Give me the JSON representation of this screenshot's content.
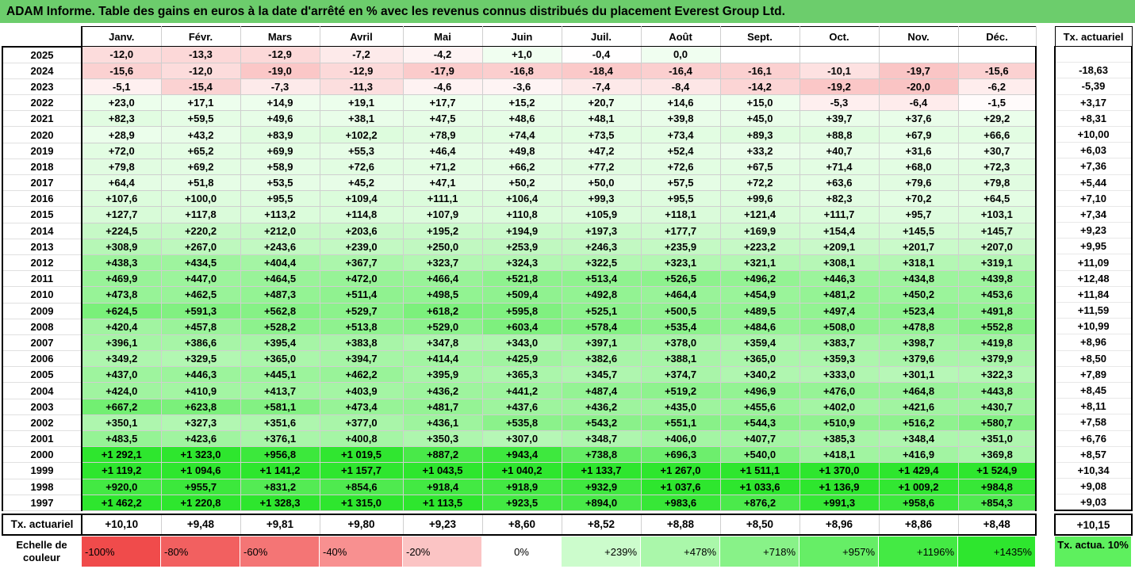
{
  "title": "ADAM Informe. Table des gains en euros à la date d'arrêté en % avec les revenus connus distribués du placement Everest Group Ltd.",
  "months": [
    "Janv.",
    "Févr.",
    "Mars",
    "Avril",
    "Mai",
    "Juin",
    "Juil.",
    "Août",
    "Sept.",
    "Oct.",
    "Nov.",
    "Déc."
  ],
  "tx_header": "Tx. actuariel",
  "rows": [
    {
      "year": "2025",
      "values": [
        "-12,0",
        "-13,3",
        "-12,9",
        "-7,2",
        "-4,2",
        "+1,0",
        "-0,4",
        "0,0",
        "",
        "",
        "",
        ""
      ],
      "tx": ""
    },
    {
      "year": "2024",
      "values": [
        "-15,6",
        "-12,0",
        "-19,0",
        "-12,9",
        "-17,9",
        "-16,8",
        "-18,4",
        "-16,4",
        "-16,1",
        "-10,1",
        "-19,7",
        "-15,6"
      ],
      "tx": "-18,63"
    },
    {
      "year": "2023",
      "values": [
        "-5,1",
        "-15,4",
        "-7,3",
        "-11,3",
        "-4,6",
        "-3,6",
        "-7,4",
        "-8,4",
        "-14,2",
        "-19,2",
        "-20,0",
        "-6,2"
      ],
      "tx": "-5,39"
    },
    {
      "year": "2022",
      "values": [
        "+23,0",
        "+17,1",
        "+14,9",
        "+19,1",
        "+17,7",
        "+15,2",
        "+20,7",
        "+14,6",
        "+15,0",
        "-5,3",
        "-6,4",
        "-1,5"
      ],
      "tx": "+3,17"
    },
    {
      "year": "2021",
      "values": [
        "+82,3",
        "+59,5",
        "+49,6",
        "+38,1",
        "+47,5",
        "+48,6",
        "+48,1",
        "+39,8",
        "+45,0",
        "+39,7",
        "+37,6",
        "+29,2"
      ],
      "tx": "+8,31"
    },
    {
      "year": "2020",
      "values": [
        "+28,9",
        "+43,2",
        "+83,9",
        "+102,2",
        "+78,9",
        "+74,4",
        "+73,5",
        "+73,4",
        "+89,3",
        "+88,8",
        "+67,9",
        "+66,6"
      ],
      "tx": "+10,00"
    },
    {
      "year": "2019",
      "values": [
        "+72,0",
        "+65,2",
        "+69,9",
        "+55,3",
        "+46,4",
        "+49,8",
        "+47,2",
        "+52,4",
        "+33,2",
        "+40,7",
        "+31,6",
        "+30,7"
      ],
      "tx": "+6,03"
    },
    {
      "year": "2018",
      "values": [
        "+79,8",
        "+69,2",
        "+58,9",
        "+72,6",
        "+71,2",
        "+66,2",
        "+77,2",
        "+72,6",
        "+67,5",
        "+71,4",
        "+68,0",
        "+72,3"
      ],
      "tx": "+7,36"
    },
    {
      "year": "2017",
      "values": [
        "+64,4",
        "+51,8",
        "+53,5",
        "+45,2",
        "+47,1",
        "+50,2",
        "+50,0",
        "+57,5",
        "+72,2",
        "+63,6",
        "+79,6",
        "+79,8"
      ],
      "tx": "+5,44"
    },
    {
      "year": "2016",
      "values": [
        "+107,6",
        "+100,0",
        "+95,5",
        "+109,4",
        "+111,1",
        "+106,4",
        "+99,3",
        "+95,5",
        "+99,6",
        "+82,3",
        "+70,2",
        "+64,5"
      ],
      "tx": "+7,10"
    },
    {
      "year": "2015",
      "values": [
        "+127,7",
        "+117,8",
        "+113,2",
        "+114,8",
        "+107,9",
        "+110,8",
        "+105,9",
        "+118,1",
        "+121,4",
        "+111,7",
        "+95,7",
        "+103,1"
      ],
      "tx": "+7,34"
    },
    {
      "year": "2014",
      "values": [
        "+224,5",
        "+220,2",
        "+212,0",
        "+203,6",
        "+195,2",
        "+194,9",
        "+197,3",
        "+177,7",
        "+169,9",
        "+154,4",
        "+145,5",
        "+145,7"
      ],
      "tx": "+9,23"
    },
    {
      "year": "2013",
      "values": [
        "+308,9",
        "+267,0",
        "+243,6",
        "+239,0",
        "+250,0",
        "+253,9",
        "+246,3",
        "+235,9",
        "+223,2",
        "+209,1",
        "+201,7",
        "+207,0"
      ],
      "tx": "+9,95"
    },
    {
      "year": "2012",
      "values": [
        "+438,3",
        "+434,5",
        "+404,4",
        "+367,7",
        "+323,7",
        "+324,3",
        "+322,5",
        "+323,1",
        "+321,1",
        "+308,1",
        "+318,1",
        "+319,1"
      ],
      "tx": "+11,09"
    },
    {
      "year": "2011",
      "values": [
        "+469,9",
        "+447,0",
        "+464,5",
        "+472,0",
        "+466,4",
        "+521,8",
        "+513,4",
        "+526,5",
        "+496,2",
        "+446,3",
        "+434,8",
        "+439,8"
      ],
      "tx": "+12,48"
    },
    {
      "year": "2010",
      "values": [
        "+473,8",
        "+462,5",
        "+487,3",
        "+511,4",
        "+498,5",
        "+509,4",
        "+492,8",
        "+464,4",
        "+454,9",
        "+481,2",
        "+450,2",
        "+453,6"
      ],
      "tx": "+11,84"
    },
    {
      "year": "2009",
      "values": [
        "+624,5",
        "+591,3",
        "+562,8",
        "+529,7",
        "+618,2",
        "+595,8",
        "+525,1",
        "+500,5",
        "+489,5",
        "+497,4",
        "+523,4",
        "+491,8"
      ],
      "tx": "+11,59"
    },
    {
      "year": "2008",
      "values": [
        "+420,4",
        "+457,8",
        "+528,2",
        "+513,8",
        "+529,0",
        "+603,4",
        "+578,4",
        "+535,4",
        "+484,6",
        "+508,0",
        "+478,8",
        "+552,8"
      ],
      "tx": "+10,99"
    },
    {
      "year": "2007",
      "values": [
        "+396,1",
        "+386,6",
        "+395,4",
        "+383,8",
        "+347,8",
        "+343,0",
        "+397,1",
        "+378,0",
        "+359,4",
        "+383,7",
        "+398,7",
        "+419,8"
      ],
      "tx": "+8,96"
    },
    {
      "year": "2006",
      "values": [
        "+349,2",
        "+329,5",
        "+365,0",
        "+394,7",
        "+414,4",
        "+425,9",
        "+382,6",
        "+388,1",
        "+365,0",
        "+359,3",
        "+379,6",
        "+379,9"
      ],
      "tx": "+8,50"
    },
    {
      "year": "2005",
      "values": [
        "+437,0",
        "+446,3",
        "+445,1",
        "+462,2",
        "+395,9",
        "+365,3",
        "+345,7",
        "+374,7",
        "+340,2",
        "+333,0",
        "+301,1",
        "+322,3"
      ],
      "tx": "+7,89"
    },
    {
      "year": "2004",
      "values": [
        "+424,0",
        "+410,9",
        "+413,7",
        "+403,9",
        "+436,2",
        "+441,2",
        "+487,4",
        "+519,2",
        "+496,9",
        "+476,0",
        "+464,8",
        "+443,8"
      ],
      "tx": "+8,45"
    },
    {
      "year": "2003",
      "values": [
        "+667,2",
        "+623,8",
        "+581,1",
        "+473,4",
        "+481,7",
        "+437,6",
        "+436,2",
        "+435,0",
        "+455,6",
        "+402,0",
        "+421,6",
        "+430,7"
      ],
      "tx": "+8,11"
    },
    {
      "year": "2002",
      "values": [
        "+350,1",
        "+327,3",
        "+351,6",
        "+377,0",
        "+436,1",
        "+535,8",
        "+543,2",
        "+551,1",
        "+544,3",
        "+510,9",
        "+516,2",
        "+580,7"
      ],
      "tx": "+7,58"
    },
    {
      "year": "2001",
      "values": [
        "+483,5",
        "+423,6",
        "+376,1",
        "+400,8",
        "+350,3",
        "+307,0",
        "+348,7",
        "+406,0",
        "+407,7",
        "+385,3",
        "+348,4",
        "+351,0"
      ],
      "tx": "+6,76"
    },
    {
      "year": "2000",
      "values": [
        "+1 292,1",
        "+1 323,0",
        "+956,8",
        "+1 019,5",
        "+887,2",
        "+943,4",
        "+738,8",
        "+696,3",
        "+540,0",
        "+418,1",
        "+416,9",
        "+369,8"
      ],
      "tx": "+8,57"
    },
    {
      "year": "1999",
      "values": [
        "+1 119,2",
        "+1 094,6",
        "+1 141,2",
        "+1 157,7",
        "+1 043,5",
        "+1 040,2",
        "+1 133,7",
        "+1 267,0",
        "+1 511,1",
        "+1 370,0",
        "+1 429,4",
        "+1 524,9"
      ],
      "tx": "+10,34"
    },
    {
      "year": "1998",
      "values": [
        "+920,0",
        "+955,7",
        "+831,2",
        "+854,6",
        "+918,4",
        "+918,9",
        "+932,9",
        "+1 037,6",
        "+1 033,6",
        "+1 136,9",
        "+1 009,2",
        "+984,8"
      ],
      "tx": "+9,08"
    },
    {
      "year": "1997",
      "values": [
        "+1 462,2",
        "+1 220,8",
        "+1 328,3",
        "+1 315,0",
        "+1 113,5",
        "+923,5",
        "+894,0",
        "+983,6",
        "+876,2",
        "+991,3",
        "+958,6",
        "+854,3"
      ],
      "tx": "+9,03"
    }
  ],
  "tx_row": {
    "label": "Tx. actuariel",
    "values": [
      "+10,10",
      "+9,48",
      "+9,81",
      "+9,80",
      "+9,23",
      "+8,60",
      "+8,52",
      "+8,88",
      "+8,50",
      "+8,96",
      "+8,86",
      "+8,48"
    ],
    "tx": "+10,15"
  },
  "scale": {
    "label": "Echelle de couleur",
    "items": [
      {
        "text": "-100%",
        "color": "#f04b4b"
      },
      {
        "text": "-80%",
        "color": "#f26060"
      },
      {
        "text": "-60%",
        "color": "#f47575"
      },
      {
        "text": "-40%",
        "color": "#f89090"
      },
      {
        "text": "-20%",
        "color": "#fbc4c4"
      },
      {
        "text": "0%",
        "color": "#ffffff"
      },
      {
        "text": "+239%",
        "color": "#ccfccc"
      },
      {
        "text": "+478%",
        "color": "#aaf7aa"
      },
      {
        "text": "+718%",
        "color": "#88f288"
      },
      {
        "text": "+957%",
        "color": "#66ee66"
      },
      {
        "text": "+1196%",
        "color": "#44ea44"
      },
      {
        "text": "+1435%",
        "color": "#2ee62e"
      }
    ],
    "tx_label": "Tx. actua. 10%"
  }
}
